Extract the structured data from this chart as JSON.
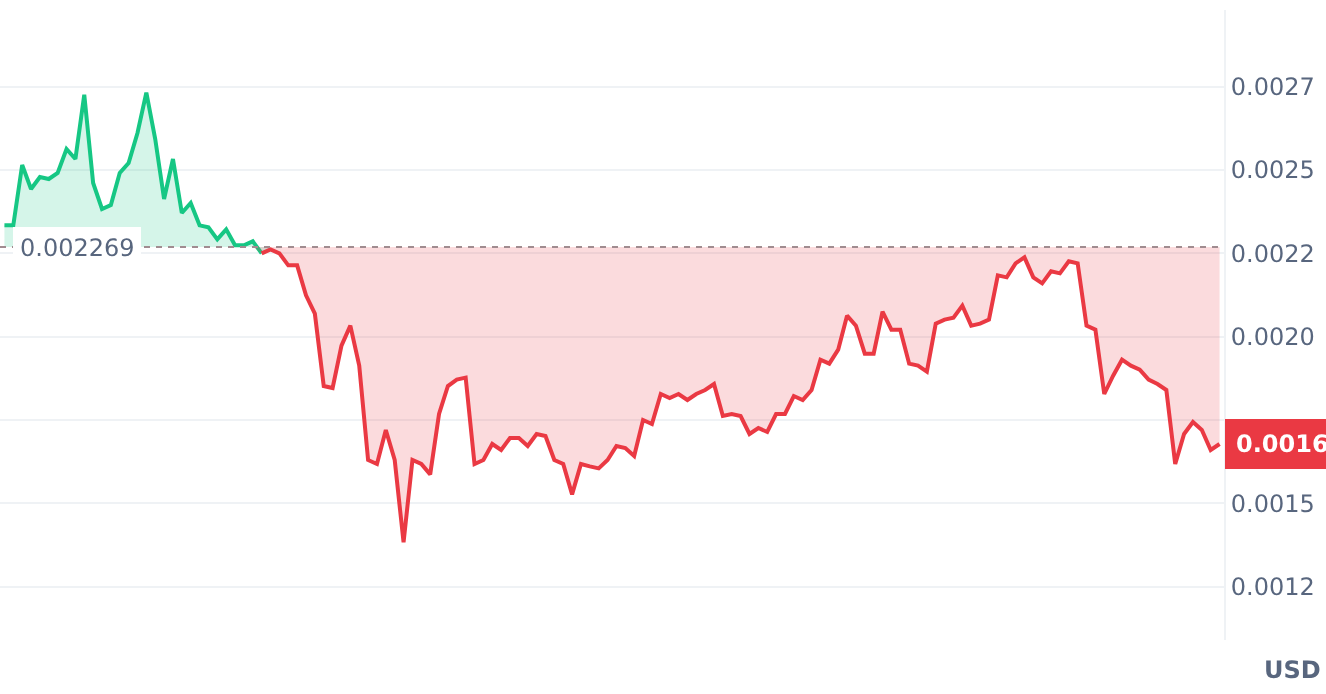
{
  "chart_data": {
    "type": "line",
    "ylabel": "USD",
    "categories": [
      null,
      null,
      null,
      null,
      null,
      null,
      null,
      null,
      null,
      null,
      null,
      null,
      null,
      null,
      null,
      null,
      null,
      null,
      null,
      null,
      null,
      null,
      null,
      null,
      null,
      null,
      null,
      null,
      null,
      null,
      null,
      null,
      null,
      null,
      null,
      null,
      null,
      null,
      null,
      null,
      null,
      null,
      null,
      null,
      null,
      null,
      null,
      null,
      null,
      null,
      null,
      null,
      null,
      null,
      null,
      null,
      null,
      null,
      null,
      null,
      null,
      null,
      null,
      null,
      null,
      null,
      null,
      null,
      null,
      null,
      null,
      null,
      null,
      null,
      null,
      null,
      null,
      null,
      null,
      null,
      null,
      null,
      null,
      null,
      null,
      null,
      null,
      null,
      null,
      null,
      null,
      null,
      null,
      null,
      null,
      null,
      null,
      null,
      null,
      null,
      null,
      null,
      null,
      null,
      null,
      null,
      null,
      null,
      null,
      null,
      null,
      null,
      null,
      null,
      null,
      null,
      null,
      null,
      null,
      null,
      null,
      null,
      null,
      null,
      null,
      null,
      null,
      null,
      null,
      null,
      null,
      null,
      null,
      null,
      null,
      null,
      null,
      null
    ],
    "series": [
      {
        "color": "#16c784",
        "values": [
          0.002334,
          0.002334,
          0.002515,
          0.002443,
          0.002479,
          0.002473,
          0.002491,
          0.002563,
          0.002533,
          0.002726,
          0.002461,
          0.002383,
          0.002395,
          0.002491,
          0.002521,
          0.002611,
          0.002732,
          0.002593,
          0.002413,
          0.002533,
          0.002371,
          0.002401,
          0.002334,
          0.002328,
          0.002292,
          0.002322,
          0.002274,
          0.002274,
          0.002286,
          0.00225,
          null,
          null,
          null,
          null,
          null,
          null,
          null,
          null,
          null,
          null,
          null,
          null,
          null,
          null,
          null,
          null,
          null,
          null,
          null,
          null,
          null,
          null,
          null,
          null,
          null,
          null,
          null,
          null,
          null,
          null,
          null,
          null,
          null,
          null,
          null,
          null,
          null,
          null,
          null,
          null,
          null,
          null,
          null,
          null,
          null,
          null,
          null,
          null,
          null,
          null,
          null,
          null,
          null,
          null,
          null,
          null,
          null,
          null,
          null,
          null,
          null,
          null,
          null,
          null,
          null,
          null,
          null,
          null,
          null,
          null,
          null,
          null,
          null,
          null,
          null,
          null,
          null,
          null,
          null,
          null,
          null,
          null,
          null,
          null,
          null,
          null,
          null,
          null,
          null,
          null,
          null,
          null,
          null,
          null,
          null,
          null,
          null,
          null,
          null,
          null,
          null,
          null,
          null,
          null,
          null,
          null,
          null,
          null
        ]
      },
      {
        "color": "#ea3943",
        "values": [
          null,
          null,
          null,
          null,
          null,
          null,
          null,
          null,
          null,
          null,
          null,
          null,
          null,
          null,
          null,
          null,
          null,
          null,
          null,
          null,
          null,
          null,
          null,
          null,
          null,
          null,
          null,
          null,
          null,
          0.00225,
          0.002262,
          0.00225,
          0.002214,
          0.002214,
          0.002124,
          0.002069,
          0.001852,
          0.001846,
          0.001973,
          0.002033,
          0.001913,
          0.00163,
          0.001618,
          0.00172,
          0.00163,
          0.001383,
          0.00163,
          0.001618,
          0.001587,
          0.001768,
          0.001852,
          0.001871,
          0.001877,
          0.001618,
          0.00163,
          0.001678,
          0.00166,
          0.001696,
          0.001696,
          0.001672,
          0.001708,
          0.001702,
          0.00163,
          0.001618,
          0.001527,
          0.001618,
          0.001611,
          0.001605,
          0.00163,
          0.001672,
          0.001666,
          0.001642,
          0.00175,
          0.001738,
          0.001828,
          0.001816,
          0.001828,
          0.00181,
          0.001828,
          0.00184,
          0.001858,
          0.001762,
          0.001768,
          0.001762,
          0.001708,
          0.001726,
          0.001714,
          0.001768,
          0.001768,
          0.001822,
          0.00181,
          0.00184,
          0.001931,
          0.001919,
          0.001961,
          0.002063,
          0.002033,
          0.001949,
          0.001949,
          0.002075,
          0.002021,
          0.002021,
          0.001919,
          0.001913,
          0.001895,
          0.002039,
          0.002051,
          0.002057,
          0.002093,
          0.002033,
          0.002039,
          0.002051,
          0.002184,
          0.002178,
          0.00222,
          0.002238,
          0.002178,
          0.00216,
          0.002196,
          0.00219,
          0.002226,
          0.00222,
          0.002033,
          0.002021,
          0.001828,
          0.001883,
          0.001931,
          0.001913,
          0.001901,
          0.001871,
          0.001858,
          0.00184,
          0.001618,
          0.001708,
          0.001744,
          0.00172,
          0.00166,
          0.001678
        ]
      }
    ],
    "ylim": [
      0.00109,
      0.00298
    ],
    "yticks": [
      {
        "value": 0.00125,
        "label": "0.0012"
      },
      {
        "value": 0.0015,
        "label": "0.0015"
      },
      {
        "value": 0.00175,
        "label": null
      },
      {
        "value": 0.002,
        "label": "0.0020"
      },
      {
        "value": 0.00225,
        "label": "0.0022"
      },
      {
        "value": 0.0025,
        "label": "0.0025"
      },
      {
        "value": 0.00275,
        "label": "0.0027"
      }
    ],
    "ref_lines": [
      {
        "axis": "y",
        "value": 0.002269,
        "label": "0.002269",
        "color": "#a08c90",
        "line_style": "dotted"
      }
    ],
    "annotations": [
      "0.0016"
    ],
    "grid": "y",
    "marker": "none",
    "line_style": "solid"
  }
}
